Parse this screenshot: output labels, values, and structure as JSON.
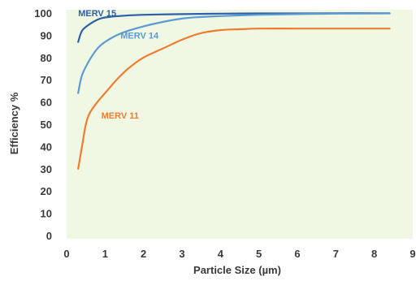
{
  "chart_data": {
    "type": "line",
    "title": "",
    "xlabel": "Particle Size (µm)",
    "ylabel": "Efficiency %",
    "xlim": [
      0,
      9
    ],
    "ylim": [
      0,
      100
    ],
    "x_ticks": [
      "0",
      "1",
      "2",
      "3",
      "4",
      "5",
      "6",
      "7",
      "8",
      "9"
    ],
    "y_ticks": [
      "0",
      "10",
      "20",
      "30",
      "40",
      "50",
      "60",
      "70",
      "80",
      "90",
      "100"
    ],
    "grid": false,
    "plot_background": "#f0f7e2",
    "series": [
      {
        "name": "MERV 15",
        "color": "#2e5faa",
        "points": [
          [
            0.3,
            87
          ],
          [
            0.4,
            92
          ],
          [
            0.6,
            95
          ],
          [
            0.8,
            97
          ],
          [
            1.0,
            98
          ],
          [
            1.5,
            98.8
          ],
          [
            2.0,
            99.2
          ],
          [
            3.0,
            99.5
          ],
          [
            4.0,
            99.7
          ],
          [
            5.0,
            99.8
          ],
          [
            6.0,
            99.8
          ],
          [
            7.0,
            99.9
          ],
          [
            8.4,
            99.9
          ]
        ]
      },
      {
        "name": "MERV 14",
        "color": "#5b9bd5",
        "points": [
          [
            0.3,
            64
          ],
          [
            0.4,
            72
          ],
          [
            0.6,
            79
          ],
          [
            0.8,
            84
          ],
          [
            1.0,
            87
          ],
          [
            1.3,
            90
          ],
          [
            1.6,
            92
          ],
          [
            2.0,
            94
          ],
          [
            2.5,
            96
          ],
          [
            3.0,
            97.5
          ],
          [
            3.5,
            98.2
          ],
          [
            4.0,
            98.6
          ],
          [
            5.0,
            99.2
          ],
          [
            6.0,
            99.5
          ],
          [
            7.0,
            99.7
          ],
          [
            8.4,
            99.8
          ]
        ]
      },
      {
        "name": "MERV 11",
        "color": "#ed7d31",
        "points": [
          [
            0.3,
            30
          ],
          [
            0.4,
            40
          ],
          [
            0.5,
            50
          ],
          [
            0.6,
            55
          ],
          [
            0.8,
            60
          ],
          [
            1.0,
            64
          ],
          [
            1.3,
            70
          ],
          [
            1.6,
            75
          ],
          [
            2.0,
            80
          ],
          [
            2.5,
            84
          ],
          [
            3.0,
            88
          ],
          [
            3.5,
            91
          ],
          [
            4.0,
            92.3
          ],
          [
            4.5,
            92.7
          ],
          [
            5.0,
            93
          ],
          [
            6.0,
            93
          ],
          [
            7.0,
            93
          ],
          [
            8.4,
            93
          ]
        ]
      }
    ],
    "annotations": [
      {
        "text": "MERV 15",
        "x": 0.3,
        "y": 100,
        "color": "#2e5faa"
      },
      {
        "text": "MERV 14",
        "x": 1.4,
        "y": 90,
        "color": "#5b9bd5"
      },
      {
        "text": "MERV 11",
        "x": 0.9,
        "y": 54,
        "color": "#ed7d31"
      }
    ]
  }
}
